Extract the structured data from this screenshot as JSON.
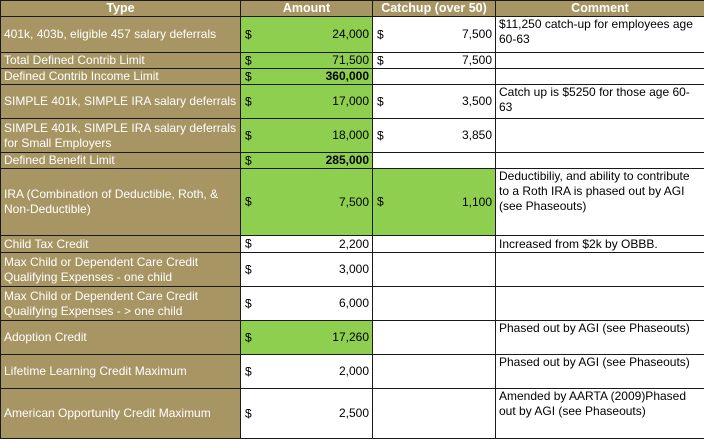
{
  "colors": {
    "header_bg": "#a89564",
    "type_bg": "#a89564",
    "highlight": "#8fcf50",
    "border": "#1a1a1a"
  },
  "columns": [
    "Type",
    "Amount",
    "Catchup (over 50)",
    "Comment"
  ],
  "rows": [
    {
      "type": "401k, 403b, eligible 457 salary deferrals",
      "amount_cur": "$",
      "amount": "24,000",
      "catch_cur": "$",
      "catchup": "7,500",
      "comment": "$11,250 catch-up for employees age 60-63"
    },
    {
      "type": "Total Defined Contrib Limit",
      "amount_cur": "$",
      "amount": "71,500",
      "catch_cur": "$",
      "catchup": "7,500",
      "comment": ""
    },
    {
      "type": "Defined Contrib Income Limit",
      "amount_cur": "$",
      "amount": "360,000",
      "catch_cur": "",
      "catchup": "",
      "comment": ""
    },
    {
      "type": "SIMPLE 401k, SIMPLE IRA salary deferrals",
      "amount_cur": "$",
      "amount": "17,000",
      "catch_cur": "$",
      "catchup": "3,500",
      "comment": "Catch up is $5250 for those age 60-63"
    },
    {
      "type": "SIMPLE 401k, SIMPLE IRA salary deferrals for Small Employers",
      "amount_cur": "$",
      "amount": "18,000",
      "catch_cur": "$",
      "catchup": "3,850",
      "comment": ""
    },
    {
      "type": "Defined Benefit Limit",
      "amount_cur": "$",
      "amount": "285,000",
      "catch_cur": "",
      "catchup": "",
      "comment": ""
    },
    {
      "type": "IRA (Combination of Deductible, Roth, & Non-Deductible)",
      "amount_cur": "$",
      "amount": "7,500",
      "catch_cur": "$",
      "catchup": "1,100",
      "comment": "Deductibiliy, and ability to contribute to a Roth IRA is phased out by AGI (see Phaseouts)"
    },
    {
      "type": "Child Tax Credit",
      "amount_cur": "$",
      "amount": "2,200",
      "catch_cur": "",
      "catchup": "",
      "comment": "Increased from $2k by OBBB."
    },
    {
      "type": "Max Child or Dependent Care Credit Qualifying Expenses - one child",
      "amount_cur": "$",
      "amount": "3,000",
      "catch_cur": "",
      "catchup": "",
      "comment": ""
    },
    {
      "type": "Max Child or Dependent Care Credit Qualifying Expenses - > one child",
      "amount_cur": "$",
      "amount": "6,000",
      "catch_cur": "",
      "catchup": "",
      "comment": ""
    },
    {
      "type": "Adoption Credit",
      "amount_cur": "$",
      "amount": "17,260",
      "catch_cur": "",
      "catchup": "",
      "comment": "Phased out by AGI (see Phaseouts)"
    },
    {
      "type": "Lifetime Learning Credit Maximum",
      "amount_cur": "$",
      "amount": "2,000",
      "catch_cur": "",
      "catchup": "",
      "comment": "Phased out by AGI (see Phaseouts)"
    },
    {
      "type": "American Opportunity Credit Maximum",
      "amount_cur": "$",
      "amount": "2,500",
      "catch_cur": "",
      "catchup": "",
      "comment": "Amended by AARTA (2009)Phased out by AGI (see Phaseouts)"
    }
  ]
}
